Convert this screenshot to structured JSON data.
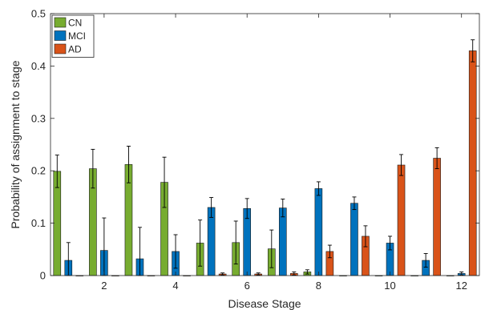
{
  "chart_data": {
    "type": "bar",
    "title": "",
    "xlabel": "Disease Stage",
    "ylabel": "Probability of assignment to stage",
    "ylim": [
      0,
      0.5
    ],
    "xlim": [
      0.5,
      12.5
    ],
    "x": [
      1,
      2,
      3,
      4,
      5,
      6,
      7,
      8,
      9,
      10,
      11,
      12
    ],
    "xticks": [
      "2",
      "4",
      "6",
      "8",
      "10",
      "12"
    ],
    "yticks": [
      "0",
      "0.1",
      "0.2",
      "0.3",
      "0.4",
      "0.5"
    ],
    "legend_position": "top-left",
    "grid": false,
    "series": [
      {
        "name": "CN",
        "color": "#77ac30",
        "values": [
          0.199,
          0.204,
          0.212,
          0.178,
          0.062,
          0.063,
          0.051,
          0.007,
          0.0,
          0.0,
          0.0,
          0.0
        ],
        "error": [
          0.031,
          0.037,
          0.035,
          0.048,
          0.044,
          0.041,
          0.036,
          0.004,
          0.0,
          0.0,
          0.0,
          0.0
        ]
      },
      {
        "name": "MCI",
        "color": "#0072bd",
        "values": [
          0.029,
          0.048,
          0.032,
          0.046,
          0.13,
          0.128,
          0.129,
          0.166,
          0.138,
          0.062,
          0.029,
          0.004
        ],
        "error": [
          0.034,
          0.062,
          0.06,
          0.032,
          0.019,
          0.019,
          0.017,
          0.013,
          0.012,
          0.013,
          0.013,
          0.003
        ]
      },
      {
        "name": "AD",
        "color": "#d95319",
        "values": [
          0.0,
          0.0,
          0.0,
          0.0,
          0.003,
          0.003,
          0.004,
          0.046,
          0.075,
          0.211,
          0.224,
          0.429
        ],
        "error": [
          0.0,
          0.0,
          0.0,
          0.0,
          0.002,
          0.002,
          0.003,
          0.012,
          0.02,
          0.02,
          0.02,
          0.021
        ]
      }
    ]
  }
}
